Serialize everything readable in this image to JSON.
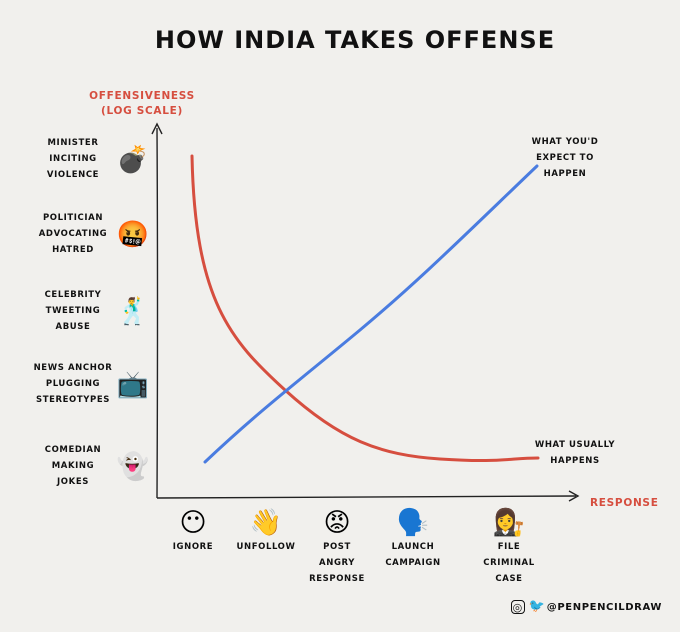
{
  "chart_data": {
    "type": "line",
    "title": "HOW INDIA TAKES OFFENSE",
    "ylabel": [
      "OFFENSIVENESS",
      "(LOG SCALE)"
    ],
    "xlabel": "RESPONSE",
    "y_scale": "log",
    "y_categories": [
      {
        "label": [
          "MINISTER",
          "INCITING",
          "VIOLENCE"
        ],
        "icon": "bomb-icon",
        "glyph": "💣"
      },
      {
        "label": [
          "POLITICIAN",
          "ADVOCATING",
          "HATRED"
        ],
        "icon": "cursing-face-icon",
        "glyph": "🤬"
      },
      {
        "label": [
          "CELEBRITY",
          "TWEETING",
          "ABUSE"
        ],
        "icon": "dancing-man-icon",
        "glyph": "🕺"
      },
      {
        "label": [
          "NEWS ANCHOR",
          "PLUGGING",
          "STEREOTYPES"
        ],
        "icon": "television-icon",
        "glyph": "📺"
      },
      {
        "label": [
          "COMEDIAN",
          "MAKING",
          "JOKES"
        ],
        "icon": "ghost-icon",
        "glyph": "👻"
      }
    ],
    "x_categories": [
      {
        "label": [
          "IGNORE"
        ],
        "icon": "neutral-face-icon",
        "glyph": "😶"
      },
      {
        "label": [
          "UNFOLLOW"
        ],
        "icon": "waving-hand-icon",
        "glyph": "👋"
      },
      {
        "label": [
          "POST",
          "ANGRY",
          "RESPONSE"
        ],
        "icon": "angry-face-icon",
        "glyph": "😡"
      },
      {
        "label": [
          "LAUNCH",
          "CAMPAIGN"
        ],
        "icon": "speaking-head-icon",
        "glyph": "🗣️"
      },
      {
        "label": [
          "FILE",
          "CRIMINAL",
          "CASE"
        ],
        "icon": "judge-icon",
        "glyph": "👩‍⚖️"
      }
    ],
    "series": [
      {
        "name": [
          "WHAT YOU'D",
          "EXPECT TO",
          "HAPPEN"
        ],
        "color": "#4a7ce0",
        "shape": "linear-increasing"
      },
      {
        "name": [
          "WHAT USUALLY",
          "HAPPENS"
        ],
        "color": "#d64e3f",
        "shape": "decaying-curve"
      }
    ]
  },
  "credit": {
    "handle": "@PENPENCILDRAW",
    "icons": [
      "instagram-icon",
      "twitter-icon"
    ]
  }
}
